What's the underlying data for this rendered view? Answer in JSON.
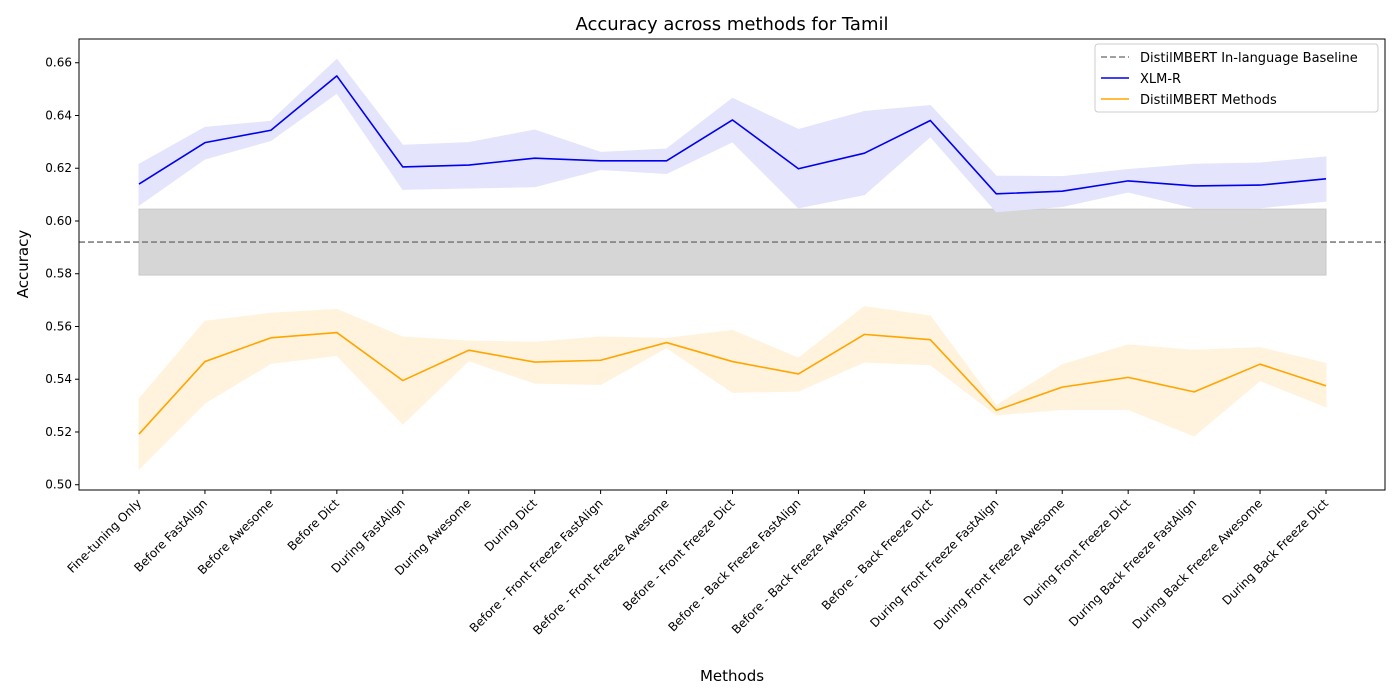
{
  "chart_data": {
    "type": "line",
    "title": "Accuracy across methods for Tamil",
    "xlabel": "Methods",
    "ylabel": "Accuracy",
    "ylim": [
      0.498,
      0.669
    ],
    "yticks": [
      0.5,
      0.52,
      0.54,
      0.56,
      0.58,
      0.6,
      0.62,
      0.64,
      0.66
    ],
    "ytick_labels": [
      "0.50",
      "0.52",
      "0.54",
      "0.56",
      "0.58",
      "0.60",
      "0.62",
      "0.64",
      "0.66"
    ],
    "grid": false,
    "legend_position": "top-right",
    "categories": [
      "Fine-tuning Only",
      "Before FastAlign",
      "Before Awesome",
      "Before Dict",
      "During FastAlign",
      "During Awesome",
      "During Dict",
      "Before - Front Freeze FastAlign",
      "Before - Front Freeze Awesome",
      "Before - Front Freeze Dict",
      "Before - Back Freeze FastAlign",
      "Before - Back Freeze Awesome",
      "Before - Back Freeze Dict",
      "During Front Freeze FastAlign",
      "During Front Freeze Awesome",
      "During Front Freeze Dict",
      "During Back Freeze FastAlign",
      "During Back Freeze Awesome",
      "During Back Freeze Dict"
    ],
    "baseline": {
      "name": "DistilMBERT In-language Baseline",
      "value": 0.592,
      "band": [
        0.5795,
        0.6045
      ],
      "color": "#808080",
      "band_color": "#d6d6d6"
    },
    "series": [
      {
        "name": "XLM-R",
        "color": "#0000ee",
        "band_color": "#e4e4fd",
        "values": [
          0.614,
          0.6297,
          0.6344,
          0.655,
          0.6205,
          0.6212,
          0.6238,
          0.6228,
          0.6228,
          0.6383,
          0.6198,
          0.6257,
          0.6381,
          0.6103,
          0.6113,
          0.6152,
          0.6133,
          0.6136,
          0.616
        ],
        "lower": [
          0.606,
          0.6235,
          0.6305,
          0.6485,
          0.612,
          0.6125,
          0.613,
          0.6195,
          0.618,
          0.63,
          0.605,
          0.61,
          0.632,
          0.6035,
          0.6055,
          0.611,
          0.605,
          0.605,
          0.6075
        ],
        "upper": [
          0.6215,
          0.6355,
          0.6378,
          0.6613,
          0.6287,
          0.6297,
          0.6345,
          0.626,
          0.6273,
          0.6465,
          0.6347,
          0.6415,
          0.6438,
          0.617,
          0.6168,
          0.6195,
          0.6215,
          0.622,
          0.6243
        ]
      },
      {
        "name": "DistilMBERT Methods",
        "color": "#ffa500",
        "band_color": "#fff3de",
        "values": [
          0.5192,
          0.5467,
          0.5557,
          0.5577,
          0.5395,
          0.551,
          0.5465,
          0.5472,
          0.5539,
          0.5467,
          0.542,
          0.557,
          0.555,
          0.5282,
          0.537,
          0.5407,
          0.5352,
          0.5457,
          0.5375
        ],
        "lower": [
          0.506,
          0.531,
          0.546,
          0.549,
          0.523,
          0.547,
          0.5385,
          0.538,
          0.552,
          0.535,
          0.5355,
          0.5465,
          0.5455,
          0.5265,
          0.5285,
          0.5285,
          0.5185,
          0.5395,
          0.5295
        ],
        "upper": [
          0.5325,
          0.562,
          0.565,
          0.5665,
          0.556,
          0.5545,
          0.554,
          0.556,
          0.5555,
          0.5585,
          0.548,
          0.5675,
          0.564,
          0.53,
          0.5455,
          0.553,
          0.551,
          0.552,
          0.546
        ]
      }
    ]
  }
}
